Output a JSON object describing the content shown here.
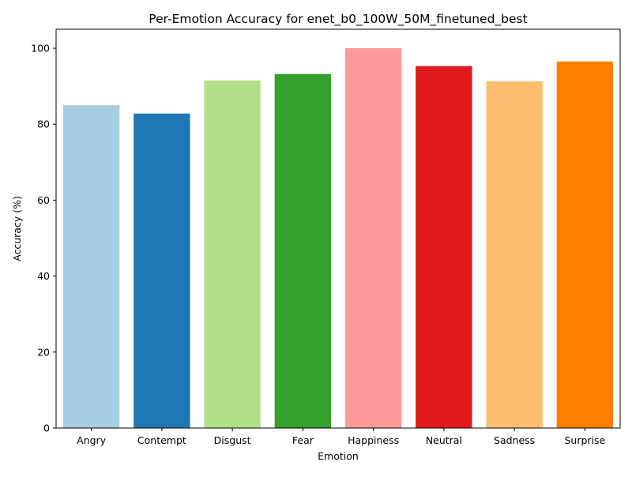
{
  "chart_data": {
    "type": "bar",
    "title": "Per-Emotion Accuracy for enet_b0_100W_50M_finetuned_best",
    "xlabel": "Emotion",
    "ylabel": "Accuracy (%)",
    "categories": [
      "Angry",
      "Contempt",
      "Disgust",
      "Fear",
      "Happiness",
      "Neutral",
      "Sadness",
      "Surprise"
    ],
    "values": [
      85.0,
      82.8,
      91.5,
      93.2,
      100.0,
      95.3,
      91.3,
      96.5
    ],
    "colors": [
      "#a6cee3",
      "#1f78b4",
      "#b2df8a",
      "#33a02c",
      "#fb9a99",
      "#e31a1c",
      "#fdbf6f",
      "#ff7f00"
    ],
    "ylim": [
      0,
      105
    ],
    "yticks": [
      "0",
      "20",
      "40",
      "60",
      "80",
      "100"
    ],
    "grid": false,
    "legend": "none"
  }
}
